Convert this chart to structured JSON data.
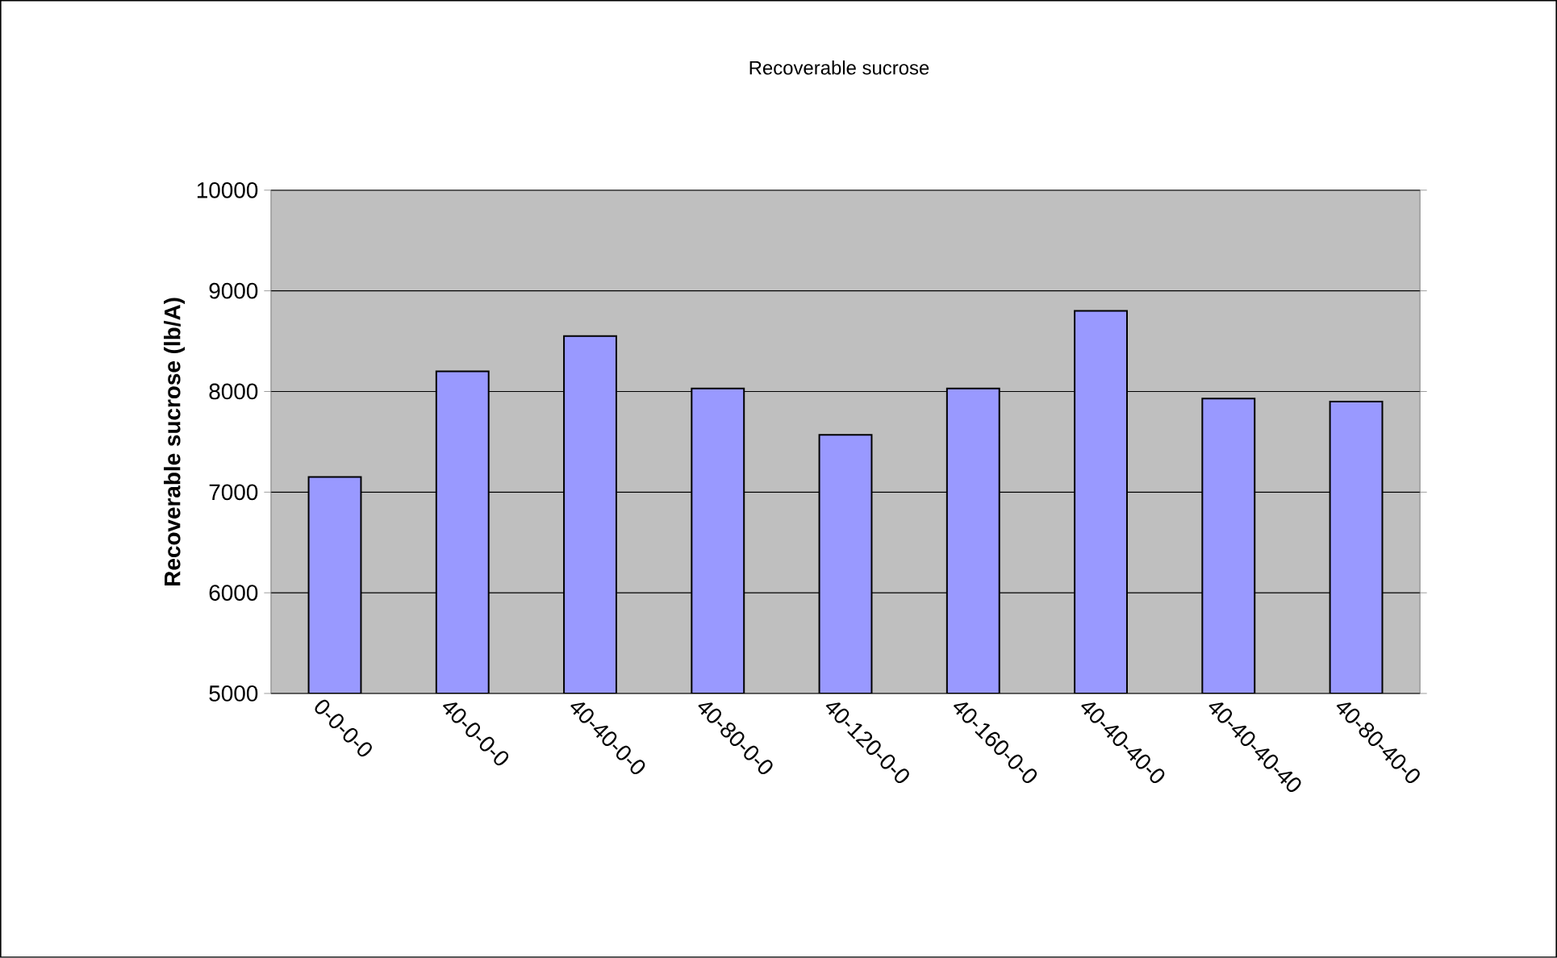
{
  "chart_data": {
    "type": "bar",
    "title": "Recoverable sucrose",
    "ylabel": "Recoverable sucrose (lb/A)",
    "categories": [
      "0-0-0-0",
      "40-0-0-0",
      "40-40-0-0",
      "40-80-0-0",
      "40-120-0-0",
      "40-160-0-0",
      "40-40-40-0",
      "40-40-40-40",
      "40-80-40-0"
    ],
    "values": [
      7150,
      8200,
      8550,
      8030,
      7570,
      8030,
      8800,
      7930,
      7900
    ],
    "color": "#9999ff",
    "ylim": [
      5000,
      10000
    ],
    "yticks": [
      5000,
      6000,
      7000,
      8000,
      9000,
      10000
    ],
    "grid": "y"
  }
}
